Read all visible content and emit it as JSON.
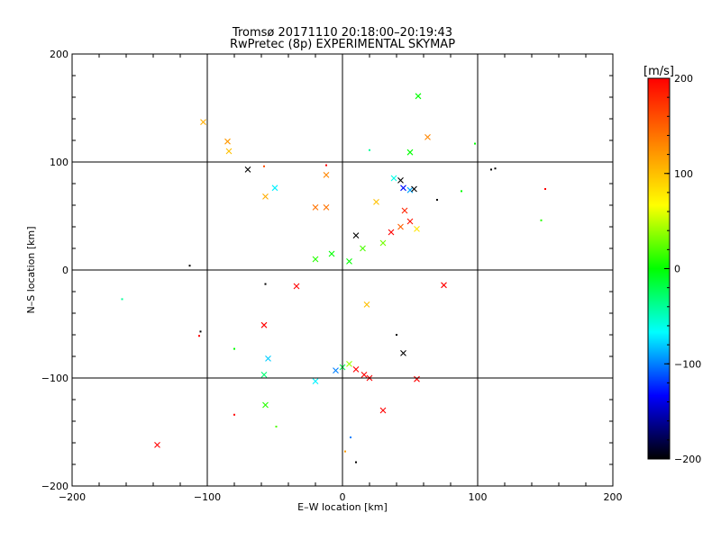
{
  "chart_data": {
    "type": "scatter",
    "title": "Tromsø 20171110 20:18:00–20:19:43",
    "subtitle": "RwPretec (8p) EXPERIMENTAL SKYMAP",
    "xlabel": "E–W location [km]",
    "ylabel": "N–S location [km]",
    "xlim": [
      -200,
      200
    ],
    "ylim": [
      -200,
      200
    ],
    "grid": true,
    "xticks": [
      "−200",
      "−100",
      "0",
      "100",
      "200"
    ],
    "yticks": [
      "−200",
      "−100",
      "0",
      "100",
      "200"
    ],
    "colorbar": {
      "label": "[m/s]",
      "range": [
        -200,
        200
      ],
      "ticks": [
        "200",
        "100",
        "0",
        "−100",
        "−200"
      ],
      "colors": [
        "#ff0000",
        "#ff8000",
        "#ffff00",
        "#00ff00",
        "#00ffff",
        "#0000ff",
        "#000000"
      ]
    },
    "points": [
      {
        "x": 56,
        "y": 161,
        "v": 0,
        "m": "x"
      },
      {
        "x": -103,
        "y": 137,
        "v": 110,
        "m": "x"
      },
      {
        "x": 63,
        "y": 123,
        "v": 130,
        "m": "x"
      },
      {
        "x": -85,
        "y": 119,
        "v": 120,
        "m": "x"
      },
      {
        "x": -84,
        "y": 110,
        "v": 100,
        "m": "x"
      },
      {
        "x": 50,
        "y": 109,
        "v": 0,
        "m": "x"
      },
      {
        "x": 98,
        "y": 117,
        "v": 0,
        "m": "."
      },
      {
        "x": 20,
        "y": 111,
        "v": -40,
        "m": "."
      },
      {
        "x": -70,
        "y": 93,
        "v": -200,
        "m": "x"
      },
      {
        "x": -58,
        "y": 96,
        "v": 160,
        "m": "."
      },
      {
        "x": -12,
        "y": 97,
        "v": 200,
        "m": "."
      },
      {
        "x": -12,
        "y": 88,
        "v": 130,
        "m": "x"
      },
      {
        "x": 113,
        "y": 94,
        "v": -200,
        "m": "."
      },
      {
        "x": -50,
        "y": 76,
        "v": -70,
        "m": "x"
      },
      {
        "x": -57,
        "y": 68,
        "v": 110,
        "m": "x"
      },
      {
        "x": 150,
        "y": 75,
        "v": 200,
        "m": "."
      },
      {
        "x": -20,
        "y": 58,
        "v": 140,
        "m": "x"
      },
      {
        "x": -12,
        "y": 58,
        "v": 140,
        "m": "x"
      },
      {
        "x": 147,
        "y": 46,
        "v": 10,
        "m": "."
      },
      {
        "x": 43,
        "y": 83,
        "v": -200,
        "m": "x"
      },
      {
        "x": 45,
        "y": 76,
        "v": -130,
        "m": "x"
      },
      {
        "x": 50,
        "y": 74,
        "v": -90,
        "m": "x"
      },
      {
        "x": 53,
        "y": 75,
        "v": -200,
        "m": "x"
      },
      {
        "x": 38,
        "y": 85,
        "v": -60,
        "m": "x"
      },
      {
        "x": 70,
        "y": 65,
        "v": -200,
        "m": "."
      },
      {
        "x": 25,
        "y": 63,
        "v": 100,
        "m": "x"
      },
      {
        "x": 46,
        "y": 55,
        "v": 180,
        "m": "x"
      },
      {
        "x": 50,
        "y": 45,
        "v": 190,
        "m": "x"
      },
      {
        "x": 43,
        "y": 40,
        "v": 150,
        "m": "x"
      },
      {
        "x": 36,
        "y": 35,
        "v": 200,
        "m": "x"
      },
      {
        "x": 55,
        "y": 38,
        "v": 80,
        "m": "x"
      },
      {
        "x": 10,
        "y": 32,
        "v": -200,
        "m": "x"
      },
      {
        "x": 15,
        "y": 20,
        "v": 20,
        "m": "x"
      },
      {
        "x": -20,
        "y": 10,
        "v": 10,
        "m": "x"
      },
      {
        "x": -8,
        "y": 15,
        "v": 0,
        "m": "x"
      },
      {
        "x": 5,
        "y": 8,
        "v": 0,
        "m": "x"
      },
      {
        "x": 30,
        "y": 25,
        "v": 30,
        "m": "x"
      },
      {
        "x": -34,
        "y": -15,
        "v": 200,
        "m": "x"
      },
      {
        "x": 75,
        "y": -14,
        "v": 200,
        "m": "x"
      },
      {
        "x": 18,
        "y": -32,
        "v": 100,
        "m": "x"
      },
      {
        "x": -58,
        "y": -51,
        "v": 200,
        "m": "x"
      },
      {
        "x": -55,
        "y": -82,
        "v": -80,
        "m": "x"
      },
      {
        "x": 45,
        "y": -77,
        "v": -200,
        "m": "x"
      },
      {
        "x": -58,
        "y": -97,
        "v": -30,
        "m": "x"
      },
      {
        "x": -57,
        "y": -125,
        "v": 10,
        "m": "x"
      },
      {
        "x": 30,
        "y": -130,
        "v": 200,
        "m": "x"
      },
      {
        "x": -137,
        "y": -162,
        "v": 200,
        "m": "x"
      },
      {
        "x": -20,
        "y": -103,
        "v": -70,
        "m": "x"
      },
      {
        "x": 10,
        "y": -92,
        "v": 200,
        "m": "x"
      },
      {
        "x": 16,
        "y": -97,
        "v": 200,
        "m": "x"
      },
      {
        "x": 20,
        "y": -100,
        "v": 200,
        "m": "x"
      },
      {
        "x": 55,
        "y": -101,
        "v": 200,
        "m": "x"
      },
      {
        "x": 0,
        "y": -90,
        "v": -20,
        "m": "x"
      },
      {
        "x": -5,
        "y": -93,
        "v": -100,
        "m": "x"
      },
      {
        "x": 5,
        "y": -87,
        "v": 40,
        "m": "x"
      },
      {
        "x": -163,
        "y": -27,
        "v": -40,
        "m": "."
      },
      {
        "x": -113,
        "y": 4,
        "v": -200,
        "m": "."
      },
      {
        "x": -105,
        "y": -57,
        "v": -200,
        "m": "."
      },
      {
        "x": -106,
        "y": -61,
        "v": 200,
        "m": "."
      },
      {
        "x": -57,
        "y": -13,
        "v": -200,
        "m": "."
      },
      {
        "x": -80,
        "y": -134,
        "v": 200,
        "m": "."
      },
      {
        "x": -49,
        "y": -145,
        "v": 20,
        "m": "."
      },
      {
        "x": -80,
        "y": -73,
        "v": 0,
        "m": "."
      },
      {
        "x": 40,
        "y": -60,
        "v": -200,
        "m": "."
      },
      {
        "x": 10,
        "y": -178,
        "v": -200,
        "m": "."
      },
      {
        "x": 6,
        "y": -155,
        "v": -100,
        "m": "."
      },
      {
        "x": 2,
        "y": -168,
        "v": 120,
        "m": "."
      },
      {
        "x": 110,
        "y": 93,
        "v": -200,
        "m": "."
      },
      {
        "x": 88,
        "y": 73,
        "v": 0,
        "m": "."
      }
    ]
  }
}
